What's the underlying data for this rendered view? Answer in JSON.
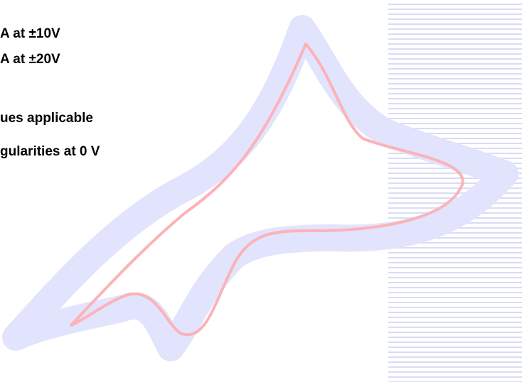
{
  "slide": {
    "bullets": [
      "A at ±10V",
      "A at ±20V",
      "ues applicable",
      "gularities at 0 V"
    ]
  },
  "colors": {
    "band": "#e2e3fc",
    "curve": "#fbb3b8",
    "stripes": "#d9dcf6"
  }
}
